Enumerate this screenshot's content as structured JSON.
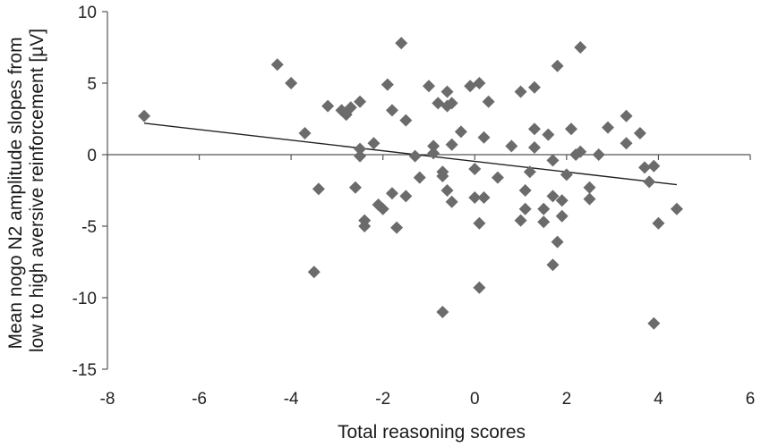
{
  "chart_data": {
    "type": "scatter",
    "xlabel": "Total reasoning scores",
    "ylabel_lines": [
      "Mean nogo N2 amplitude slopes from",
      "low to high aversive reinforcement [µV]"
    ],
    "xlim": [
      -8,
      6
    ],
    "ylim": [
      -15,
      10
    ],
    "xticks": [
      -8,
      -6,
      -4,
      -2,
      0,
      2,
      4,
      6
    ],
    "yticks": [
      10,
      5,
      0,
      -5,
      -10,
      -15
    ],
    "grid": false,
    "marker": "diamond",
    "marker_color": "#6b6b6b",
    "trendline": {
      "x": [
        -7.2,
        4.4
      ],
      "y": [
        2.2,
        -2.1
      ],
      "color": "#222222"
    },
    "points": [
      {
        "x": -7.2,
        "y": 2.7
      },
      {
        "x": -4.3,
        "y": 6.3
      },
      {
        "x": -4.0,
        "y": 5.0
      },
      {
        "x": -3.7,
        "y": 1.5
      },
      {
        "x": -3.4,
        "y": -2.4
      },
      {
        "x": -3.2,
        "y": 3.4
      },
      {
        "x": -3.5,
        "y": -8.2
      },
      {
        "x": -2.9,
        "y": 3.1
      },
      {
        "x": -2.8,
        "y": 2.8
      },
      {
        "x": -2.7,
        "y": 3.3
      },
      {
        "x": -2.6,
        "y": -2.3
      },
      {
        "x": -2.5,
        "y": 3.7
      },
      {
        "x": -2.5,
        "y": 0.4
      },
      {
        "x": -2.5,
        "y": -0.1
      },
      {
        "x": -2.4,
        "y": -4.6
      },
      {
        "x": -2.4,
        "y": -5.0
      },
      {
        "x": -2.2,
        "y": 0.8
      },
      {
        "x": -2.1,
        "y": -3.5
      },
      {
        "x": -2.0,
        "y": -3.8
      },
      {
        "x": -1.9,
        "y": 4.9
      },
      {
        "x": -1.8,
        "y": 3.1
      },
      {
        "x": -1.8,
        "y": -2.7
      },
      {
        "x": -1.7,
        "y": -5.1
      },
      {
        "x": -1.6,
        "y": 7.8
      },
      {
        "x": -1.5,
        "y": 2.4
      },
      {
        "x": -1.5,
        "y": -2.9
      },
      {
        "x": -1.3,
        "y": -0.1
      },
      {
        "x": -1.2,
        "y": -1.6
      },
      {
        "x": -1.0,
        "y": 4.8
      },
      {
        "x": -0.9,
        "y": 0.1
      },
      {
        "x": -0.9,
        "y": 0.6
      },
      {
        "x": -0.8,
        "y": 3.6
      },
      {
        "x": -0.7,
        "y": -1.2
      },
      {
        "x": -0.7,
        "y": -1.5
      },
      {
        "x": -0.6,
        "y": 4.4
      },
      {
        "x": -0.6,
        "y": 3.4
      },
      {
        "x": -0.5,
        "y": 3.6
      },
      {
        "x": -0.5,
        "y": 0.7
      },
      {
        "x": -0.6,
        "y": -2.5
      },
      {
        "x": -0.5,
        "y": -3.3
      },
      {
        "x": -0.7,
        "y": -11.0
      },
      {
        "x": -0.3,
        "y": 1.6
      },
      {
        "x": -0.1,
        "y": 4.8
      },
      {
        "x": 0.0,
        "y": -1.0
      },
      {
        "x": 0.0,
        "y": -3.0
      },
      {
        "x": 0.1,
        "y": 5.0
      },
      {
        "x": 0.2,
        "y": 1.2
      },
      {
        "x": 0.2,
        "y": -3.0
      },
      {
        "x": 0.1,
        "y": -4.8
      },
      {
        "x": 0.1,
        "y": -9.3
      },
      {
        "x": 0.3,
        "y": 3.7
      },
      {
        "x": 0.5,
        "y": -1.6
      },
      {
        "x": 0.8,
        "y": 0.6
      },
      {
        "x": 1.0,
        "y": -4.6
      },
      {
        "x": 1.0,
        "y": 4.4
      },
      {
        "x": 1.1,
        "y": -2.5
      },
      {
        "x": 1.1,
        "y": -3.8
      },
      {
        "x": 1.2,
        "y": -1.2
      },
      {
        "x": 1.3,
        "y": 4.7
      },
      {
        "x": 1.3,
        "y": 1.8
      },
      {
        "x": 1.3,
        "y": 0.5
      },
      {
        "x": 1.5,
        "y": -4.7
      },
      {
        "x": 1.5,
        "y": -3.8
      },
      {
        "x": 1.6,
        "y": 1.4
      },
      {
        "x": 1.7,
        "y": -0.4
      },
      {
        "x": 1.7,
        "y": -2.9
      },
      {
        "x": 1.7,
        "y": -7.7
      },
      {
        "x": 1.8,
        "y": 6.2
      },
      {
        "x": 1.8,
        "y": -6.1
      },
      {
        "x": 1.9,
        "y": -3.2
      },
      {
        "x": 1.9,
        "y": -4.3
      },
      {
        "x": 2.0,
        "y": -1.4
      },
      {
        "x": 2.1,
        "y": 1.8
      },
      {
        "x": 2.2,
        "y": 0.0
      },
      {
        "x": 2.3,
        "y": 7.5
      },
      {
        "x": 2.3,
        "y": 0.2
      },
      {
        "x": 2.5,
        "y": -2.3
      },
      {
        "x": 2.5,
        "y": -3.1
      },
      {
        "x": 2.7,
        "y": 0.0
      },
      {
        "x": 2.9,
        "y": 1.9
      },
      {
        "x": 3.3,
        "y": 2.7
      },
      {
        "x": 3.3,
        "y": 0.8
      },
      {
        "x": 3.6,
        "y": 1.5
      },
      {
        "x": 3.7,
        "y": -0.9
      },
      {
        "x": 3.8,
        "y": -1.9
      },
      {
        "x": 3.9,
        "y": -0.8
      },
      {
        "x": 3.9,
        "y": -11.8
      },
      {
        "x": 4.0,
        "y": -4.8
      },
      {
        "x": 4.4,
        "y": -3.8
      }
    ]
  }
}
